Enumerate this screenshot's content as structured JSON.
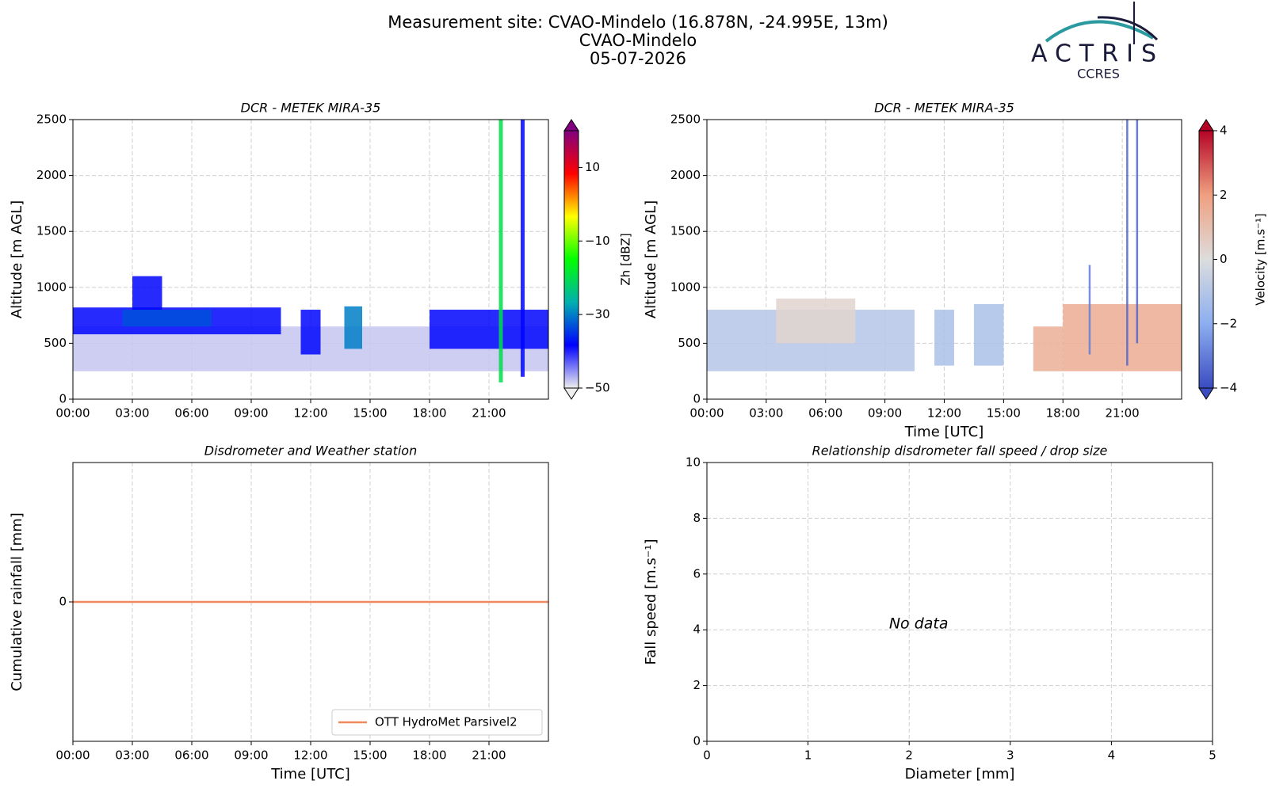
{
  "header": {
    "lines": [
      "Measurement site: CVAO-Mindelo (16.878N, -24.995E, 13m)",
      "CVAO-Mindelo",
      "05-07-2026"
    ]
  },
  "logo": {
    "name": "ACTRIS",
    "subtitle": "CCRES"
  },
  "chart_data": [
    {
      "type": "heatmap",
      "title": "DCR - METEK MIRA-35",
      "ylabel": "Altitude [m AGL]",
      "xlim": [
        0,
        24
      ],
      "ylim": [
        0,
        2500
      ],
      "xticks": [
        {
          "value": 0,
          "label": "00:00"
        },
        {
          "value": 3,
          "label": "03:00"
        },
        {
          "value": 6,
          "label": "06:00"
        },
        {
          "value": 9,
          "label": "09:00"
        },
        {
          "value": 12,
          "label": "12:00"
        },
        {
          "value": 15,
          "label": "15:00"
        },
        {
          "value": 18,
          "label": "18:00"
        },
        {
          "value": 21,
          "label": "21:00"
        }
      ],
      "yticks": [
        0,
        500,
        1000,
        1500,
        2000,
        2500
      ],
      "grid": true,
      "clabel": "Zh [dBZ]",
      "clim": [
        -50,
        20
      ],
      "cticks": [
        {
          "value": -50,
          "label": "−50"
        },
        {
          "value": -30,
          "label": "−30"
        },
        {
          "value": -10,
          "label": "−10"
        },
        10
      ],
      "colormap": [
        "#eeeeee",
        "#0000ff",
        "#00b0b0",
        "#00ff00",
        "#ffff00",
        "#ff0000",
        "#800080"
      ],
      "regions": [
        {
          "x": [
            0,
            24
          ],
          "y": [
            250,
            650
          ],
          "value": -48
        },
        {
          "x": [
            0,
            10.5
          ],
          "y": [
            580,
            820
          ],
          "value": -38
        },
        {
          "x": [
            2.5,
            7
          ],
          "y": [
            650,
            800
          ],
          "value": -33
        },
        {
          "x": [
            3,
            4.5
          ],
          "y": [
            800,
            1100
          ],
          "value": -38
        },
        {
          "x": [
            11.5,
            12.5
          ],
          "y": [
            400,
            800
          ],
          "value": -38
        },
        {
          "x": [
            13.7,
            14.6
          ],
          "y": [
            450,
            830
          ],
          "value": -30
        },
        {
          "x": [
            18,
            24
          ],
          "y": [
            450,
            800
          ],
          "value": -38
        },
        {
          "x": [
            21.5,
            21.7
          ],
          "y": [
            150,
            2500
          ],
          "value": -20
        },
        {
          "x": [
            22.6,
            22.8
          ],
          "y": [
            200,
            2500
          ],
          "value": -38
        }
      ]
    },
    {
      "type": "heatmap",
      "title": "DCR - METEK MIRA-35",
      "ylabel": "Altitude [m AGL]",
      "xlabel": "Time [UTC]",
      "xlim": [
        0,
        24
      ],
      "ylim": [
        0,
        2500
      ],
      "xticks": [
        {
          "value": 0,
          "label": "00:00"
        },
        {
          "value": 3,
          "label": "03:00"
        },
        {
          "value": 6,
          "label": "06:00"
        },
        {
          "value": 9,
          "label": "09:00"
        },
        {
          "value": 12,
          "label": "12:00"
        },
        {
          "value": 15,
          "label": "15:00"
        },
        {
          "value": 18,
          "label": "18:00"
        },
        {
          "value": 21,
          "label": "21:00"
        }
      ],
      "yticks": [
        0,
        500,
        1000,
        1500,
        2000,
        2500
      ],
      "grid": true,
      "clabel": "Velocity [m.s⁻¹]",
      "clim": [
        -4,
        4
      ],
      "cticks": [
        {
          "value": -4,
          "label": "−4"
        },
        {
          "value": -2,
          "label": "−2"
        },
        0,
        2,
        4
      ],
      "colormap": [
        "#3a4cc0",
        "#8caef0",
        "#dddddd",
        "#f0a080",
        "#b40426"
      ],
      "regions": [
        {
          "x": [
            0,
            10.5
          ],
          "y": [
            250,
            800
          ],
          "value": -1
        },
        {
          "x": [
            3.5,
            7.5
          ],
          "y": [
            500,
            900
          ],
          "value": 0.3
        },
        {
          "x": [
            11.5,
            12.5
          ],
          "y": [
            300,
            800
          ],
          "value": -1.2
        },
        {
          "x": [
            13.5,
            15
          ],
          "y": [
            300,
            850
          ],
          "value": -1.2
        },
        {
          "x": [
            16.5,
            18
          ],
          "y": [
            250,
            650
          ],
          "value": 1.5
        },
        {
          "x": [
            18,
            24
          ],
          "y": [
            250,
            850
          ],
          "value": 1.6
        },
        {
          "x": [
            19.3,
            19.4
          ],
          "y": [
            400,
            1200
          ],
          "value": -3
        },
        {
          "x": [
            21.2,
            21.3
          ],
          "y": [
            300,
            2500
          ],
          "value": -3.5
        },
        {
          "x": [
            21.7,
            21.8
          ],
          "y": [
            500,
            2500
          ],
          "value": -3.5
        }
      ]
    },
    {
      "type": "line",
      "title": "Disdrometer and Weather station",
      "ylabel": "Cumulative rainfall [mm]",
      "xlabel": "Time [UTC]",
      "xlim": [
        0,
        24
      ],
      "ylim": [
        -0.055,
        0.055
      ],
      "xticks": [
        {
          "value": 0,
          "label": "00:00"
        },
        {
          "value": 3,
          "label": "03:00"
        },
        {
          "value": 6,
          "label": "06:00"
        },
        {
          "value": 9,
          "label": "09:00"
        },
        {
          "value": 12,
          "label": "12:00"
        },
        {
          "value": 15,
          "label": "15:00"
        },
        {
          "value": 18,
          "label": "18:00"
        },
        {
          "value": 21,
          "label": "21:00"
        }
      ],
      "yticks": [
        0
      ],
      "grid": true,
      "legend": "lower right",
      "x": [
        0,
        24
      ],
      "series": [
        {
          "name": "OTT HydroMet Parsivel2",
          "color": "#ef8a5e",
          "values": [
            0,
            0
          ]
        }
      ]
    },
    {
      "type": "scatter",
      "title": "Relationship disdrometer fall speed / drop size",
      "ylabel": "Fall speed [m.s⁻¹]",
      "xlabel": "Diameter [mm]",
      "xlim": [
        0,
        5
      ],
      "ylim": [
        0,
        10
      ],
      "xticks": [
        0,
        1,
        2,
        3,
        4,
        5
      ],
      "yticks": [
        0,
        2,
        4,
        6,
        8,
        10
      ],
      "grid": true,
      "annotation": "No data"
    }
  ]
}
